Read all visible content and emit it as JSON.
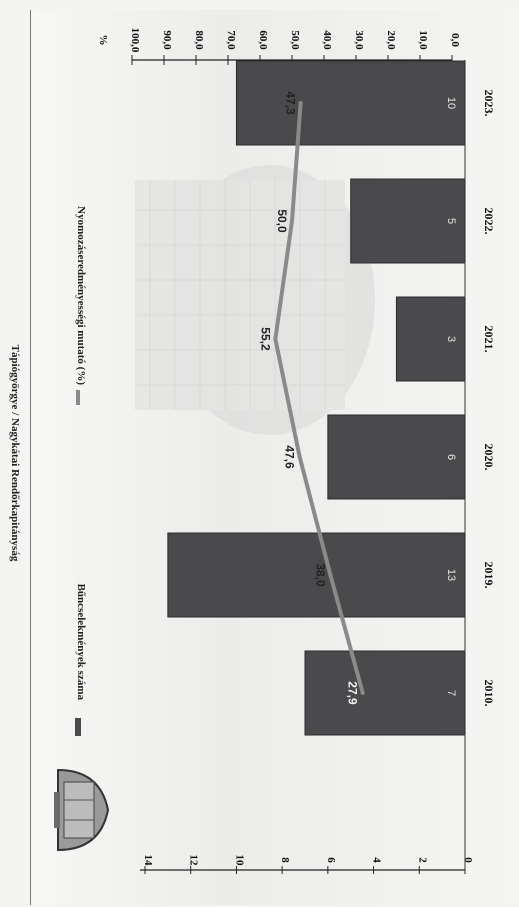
{
  "page": {
    "title": "Tápiógyörgye / Nagykátai Rendőrkapitányság"
  },
  "chart_data": {
    "type": "bar",
    "categories": [
      "2010.",
      "2019.",
      "2020.",
      "2021.",
      "2022.",
      "2023."
    ],
    "series": [
      {
        "name": "Bűncselekmények száma",
        "type": "bar",
        "axis": "left",
        "values": [
          7,
          13,
          6,
          3,
          5,
          10
        ],
        "value_labels": [
          "7",
          "13",
          "6",
          "3",
          "5",
          "10"
        ],
        "color": "#4a4a4d"
      },
      {
        "name": "Nyomozáseredményességi mutató (%)",
        "type": "line",
        "axis": "right",
        "values": [
          27.9,
          38.0,
          47.6,
          55.2,
          50.0,
          47.3
        ],
        "value_labels": [
          "27,9",
          "38,0",
          "47,6",
          "55,2",
          "50,0",
          "47,3"
        ],
        "color": "#8a8a8a"
      }
    ],
    "left_axis": {
      "range": [
        0,
        14
      ],
      "ticks": [
        "0",
        "2",
        "4",
        "6",
        "8",
        "10",
        "12",
        "14"
      ]
    },
    "right_axis": {
      "label": "%",
      "range": [
        0,
        100
      ],
      "ticks": [
        "0,0",
        "10,0",
        "20,0",
        "30,0",
        "40,0",
        "50,0",
        "60,0",
        "70,0",
        "80,0",
        "90,0",
        "100,0"
      ]
    },
    "orientation": "rotated 90 degrees clockwise",
    "legend_position": "top",
    "grid": false
  }
}
